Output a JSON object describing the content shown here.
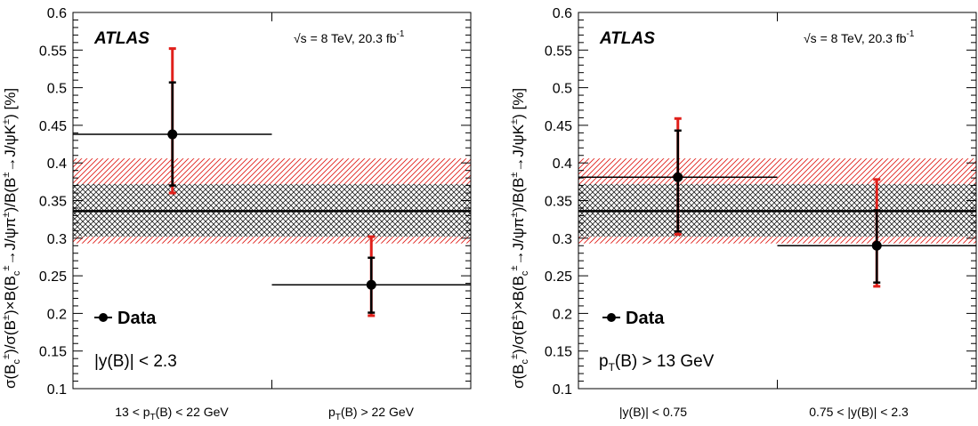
{
  "chart_data": [
    {
      "type": "scatter",
      "experiment_label": "ATLAS",
      "energy_label": "√s = 8 TeV, 20.3 fb",
      "energy_label_sup": "-1",
      "ylabel": "σ(B_c^±)/σ(B^±)×B(B_c^± → J/ψπ^±)/B(B^± → J/ψK^±) [%]",
      "ylim": [
        0.1,
        0.6
      ],
      "yticks": [
        "0.1",
        "0.15",
        "0.2",
        "0.25",
        "0.3",
        "0.35",
        "0.4",
        "0.45",
        "0.5",
        "0.55",
        "0.6"
      ],
      "legend": "Data",
      "selection_label": "|y(B)| < 2.3",
      "categories": [
        "13 < p_T(B) < 22 GeV",
        "p_T(B) > 22 GeV"
      ],
      "band": {
        "central": 0.336,
        "stat": [
          0.302,
          0.372
        ],
        "total": [
          0.293,
          0.406
        ]
      },
      "points": [
        {
          "y": 0.438,
          "stat": [
            0.37,
            0.507
          ],
          "total": [
            0.36,
            0.552
          ]
        },
        {
          "y": 0.238,
          "stat": [
            0.201,
            0.274
          ],
          "total": [
            0.197,
            0.302
          ]
        }
      ]
    },
    {
      "type": "scatter",
      "experiment_label": "ATLAS",
      "energy_label": "√s = 8 TeV, 20.3 fb",
      "energy_label_sup": "-1",
      "ylabel": "σ(B_c^±)/σ(B^±)×B(B_c^± → J/ψπ^±)/B(B^± → J/ψK^±) [%]",
      "ylim": [
        0.1,
        0.6
      ],
      "yticks": [
        "0.1",
        "0.15",
        "0.2",
        "0.25",
        "0.3",
        "0.35",
        "0.4",
        "0.45",
        "0.5",
        "0.55",
        "0.6"
      ],
      "legend": "Data",
      "selection_label": "p_T(B) > 13 GeV",
      "categories": [
        "|y(B)| < 0.75",
        "0.75 < |y(B)| < 2.3"
      ],
      "band": {
        "central": 0.336,
        "stat": [
          0.302,
          0.372
        ],
        "total": [
          0.293,
          0.406
        ]
      },
      "points": [
        {
          "y": 0.381,
          "stat": [
            0.309,
            0.443
          ],
          "total": [
            0.305,
            0.459
          ]
        },
        {
          "y": 0.29,
          "stat": [
            0.241,
            0.337
          ],
          "total": [
            0.236,
            0.378
          ]
        }
      ]
    }
  ]
}
